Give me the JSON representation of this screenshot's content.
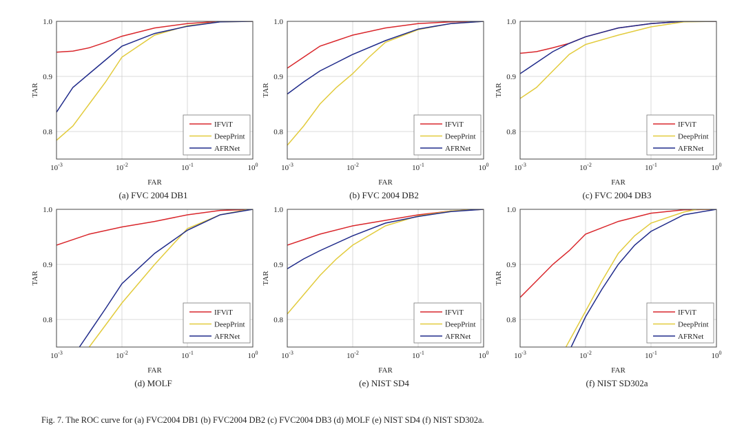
{
  "figure_caption": "Fig. 7.   The ROC curve for (a) FVC2004 DB1 (b) FVC2004 DB2 (c) FVC2004 DB3 (d) MOLF (e) NIST SD4 (f) NIST SD302a.",
  "colors": {
    "IFViT": "#d9262b",
    "DeepPrint": "#e2cb3c",
    "AFRNet": "#1f2a8a",
    "grid": "#cfcfcf",
    "axis": "#444444"
  },
  "chart_data": [
    {
      "type": "line",
      "title": "(a) FVC 2004 DB1",
      "xlabel": "FAR",
      "ylabel": "TAR",
      "xscale": "log",
      "xlim": [
        0.001,
        1
      ],
      "ylim": [
        0.75,
        1.0
      ],
      "x_tick_labels": [
        {
          "base": "10",
          "exp": "-3"
        },
        {
          "base": "10",
          "exp": "-2"
        },
        {
          "base": "10",
          "exp": "-1"
        },
        {
          "base": "10",
          "exp": "0"
        }
      ],
      "y_tick_labels": [
        "0.8",
        "0.9",
        "1.0"
      ],
      "grid": true,
      "legend": "bottom-right",
      "series": [
        {
          "name": "IFViT",
          "log10_far": [
            -3,
            -2.75,
            -2.5,
            -2.25,
            -2,
            -1.5,
            -1,
            -0.5,
            0
          ],
          "tar": [
            0.944,
            0.946,
            0.952,
            0.962,
            0.973,
            0.988,
            0.996,
            1.0,
            1.0
          ]
        },
        {
          "name": "DeepPrint",
          "log10_far": [
            -3,
            -2.75,
            -2.5,
            -2.25,
            -2,
            -1.5,
            -1,
            -0.5,
            0
          ],
          "tar": [
            0.784,
            0.81,
            0.85,
            0.89,
            0.935,
            0.975,
            0.992,
            0.999,
            1.0
          ]
        },
        {
          "name": "AFRNet",
          "log10_far": [
            -3,
            -2.75,
            -2.5,
            -2.25,
            -2,
            -1.5,
            -1,
            -0.5,
            0
          ],
          "tar": [
            0.835,
            0.88,
            0.905,
            0.93,
            0.955,
            0.978,
            0.991,
            0.999,
            1.0
          ]
        }
      ]
    },
    {
      "type": "line",
      "title": "(b) FVC 2004 DB2",
      "xlabel": "FAR",
      "ylabel": "TAR",
      "xscale": "log",
      "xlim": [
        0.001,
        1
      ],
      "ylim": [
        0.75,
        1.0
      ],
      "x_tick_labels": [
        {
          "base": "10",
          "exp": "-3"
        },
        {
          "base": "10",
          "exp": "-2"
        },
        {
          "base": "10",
          "exp": "-1"
        },
        {
          "base": "10",
          "exp": "0"
        }
      ],
      "y_tick_labels": [
        "0.8",
        "0.9",
        "1.0"
      ],
      "grid": true,
      "legend": "bottom-right",
      "series": [
        {
          "name": "IFViT",
          "log10_far": [
            -3,
            -2.75,
            -2.5,
            -2.25,
            -2,
            -1.5,
            -1,
            -0.5,
            0
          ],
          "tar": [
            0.915,
            0.935,
            0.955,
            0.965,
            0.975,
            0.988,
            0.996,
            0.999,
            1.0
          ]
        },
        {
          "name": "DeepPrint",
          "log10_far": [
            -3,
            -2.75,
            -2.5,
            -2.25,
            -2,
            -1.75,
            -1.5,
            -1,
            -0.5,
            0
          ],
          "tar": [
            0.775,
            0.81,
            0.85,
            0.88,
            0.905,
            0.935,
            0.962,
            0.985,
            0.996,
            1.0
          ]
        },
        {
          "name": "AFRNet",
          "log10_far": [
            -3,
            -2.75,
            -2.5,
            -2.25,
            -2,
            -1.5,
            -1,
            -0.5,
            0
          ],
          "tar": [
            0.868,
            0.89,
            0.91,
            0.925,
            0.94,
            0.965,
            0.986,
            0.996,
            1.0
          ]
        }
      ]
    },
    {
      "type": "line",
      "title": "(c) FVC 2004 DB3",
      "xlabel": "FAR",
      "ylabel": "TAR",
      "xscale": "log",
      "xlim": [
        0.001,
        1
      ],
      "ylim": [
        0.75,
        1.0
      ],
      "x_tick_labels": [
        {
          "base": "10",
          "exp": "-3"
        },
        {
          "base": "10",
          "exp": "-2"
        },
        {
          "base": "10",
          "exp": "-1"
        },
        {
          "base": "10",
          "exp": "0"
        }
      ],
      "y_tick_labels": [
        "0.8",
        "0.9",
        "1.0"
      ],
      "grid": true,
      "legend": "bottom-right",
      "series": [
        {
          "name": "IFViT",
          "log10_far": [
            -3,
            -2.75,
            -2.5,
            -2.25,
            -2,
            -1.5,
            -1,
            -0.5,
            0
          ],
          "tar": [
            0.942,
            0.945,
            0.952,
            0.96,
            0.972,
            0.988,
            0.996,
            1.0,
            1.0
          ]
        },
        {
          "name": "DeepPrint",
          "log10_far": [
            -3,
            -2.75,
            -2.5,
            -2.25,
            -2,
            -1.5,
            -1,
            -0.5,
            0
          ],
          "tar": [
            0.86,
            0.88,
            0.91,
            0.94,
            0.958,
            0.975,
            0.99,
            0.999,
            1.0
          ]
        },
        {
          "name": "AFRNet",
          "log10_far": [
            -3,
            -2.75,
            -2.5,
            -2.25,
            -2,
            -1.5,
            -1,
            -0.5,
            0
          ],
          "tar": [
            0.905,
            0.925,
            0.945,
            0.96,
            0.972,
            0.988,
            0.996,
            1.0,
            1.0
          ]
        }
      ]
    },
    {
      "type": "line",
      "title": "(d) MOLF",
      "xlabel": "FAR",
      "ylabel": "TAR",
      "xscale": "log",
      "xlim": [
        0.001,
        1
      ],
      "ylim": [
        0.75,
        1.0
      ],
      "x_tick_labels": [
        {
          "base": "10",
          "exp": "-3"
        },
        {
          "base": "10",
          "exp": "-2"
        },
        {
          "base": "10",
          "exp": "-1"
        },
        {
          "base": "10",
          "exp": "0"
        }
      ],
      "y_tick_labels": [
        "0.8",
        "0.9",
        "1.0"
      ],
      "grid": true,
      "legend": "bottom-right",
      "series": [
        {
          "name": "IFViT",
          "log10_far": [
            -3,
            -2.5,
            -2,
            -1.5,
            -1,
            -0.5,
            0
          ],
          "tar": [
            0.935,
            0.955,
            0.968,
            0.978,
            0.99,
            0.998,
            1.0
          ]
        },
        {
          "name": "DeepPrint",
          "log10_far": [
            -2.5,
            -2.25,
            -2,
            -1.5,
            -1,
            -0.5,
            -0.2,
            0
          ],
          "tar": [
            0.75,
            0.79,
            0.83,
            0.9,
            0.965,
            0.99,
            0.997,
            1.0
          ]
        },
        {
          "name": "AFRNet",
          "log10_far": [
            -2.65,
            -2.25,
            -2,
            -1.5,
            -1,
            -0.5,
            0
          ],
          "tar": [
            0.75,
            0.82,
            0.865,
            0.92,
            0.962,
            0.99,
            1.0
          ]
        }
      ]
    },
    {
      "type": "line",
      "title": "(e) NIST SD4",
      "xlabel": "FAR",
      "ylabel": "TAR",
      "xscale": "log",
      "xlim": [
        0.001,
        1
      ],
      "ylim": [
        0.75,
        1.0
      ],
      "x_tick_labels": [
        {
          "base": "10",
          "exp": "-3"
        },
        {
          "base": "10",
          "exp": "-2"
        },
        {
          "base": "10",
          "exp": "-1"
        },
        {
          "base": "10",
          "exp": "0"
        }
      ],
      "y_tick_labels": [
        "0.8",
        "0.9",
        "1.0"
      ],
      "grid": true,
      "legend": "bottom-right",
      "series": [
        {
          "name": "IFViT",
          "log10_far": [
            -3,
            -2.5,
            -2,
            -1.5,
            -1,
            -0.5,
            0
          ],
          "tar": [
            0.935,
            0.955,
            0.97,
            0.98,
            0.99,
            0.997,
            1.0
          ]
        },
        {
          "name": "DeepPrint",
          "log10_far": [
            -3,
            -2.75,
            -2.5,
            -2.25,
            -2,
            -1.5,
            -1,
            -0.5,
            0
          ],
          "tar": [
            0.81,
            0.845,
            0.88,
            0.91,
            0.935,
            0.97,
            0.988,
            0.997,
            1.0
          ]
        },
        {
          "name": "AFRNet",
          "log10_far": [
            -3,
            -2.75,
            -2.5,
            -2,
            -1.5,
            -1,
            -0.5,
            0
          ],
          "tar": [
            0.892,
            0.91,
            0.925,
            0.952,
            0.975,
            0.987,
            0.996,
            1.0
          ]
        }
      ]
    },
    {
      "type": "line",
      "title": "(f) NIST SD302a",
      "xlabel": "FAR",
      "ylabel": "TAR",
      "xscale": "log",
      "xlim": [
        0.001,
        1
      ],
      "ylim": [
        0.75,
        1.0
      ],
      "x_tick_labels": [
        {
          "base": "10",
          "exp": "-3"
        },
        {
          "base": "10",
          "exp": "-2"
        },
        {
          "base": "10",
          "exp": "-1"
        },
        {
          "base": "10",
          "exp": "0"
        }
      ],
      "y_tick_labels": [
        "0.8",
        "0.9",
        "1.0"
      ],
      "grid": true,
      "legend": "bottom-right",
      "series": [
        {
          "name": "IFViT",
          "log10_far": [
            -3,
            -2.75,
            -2.5,
            -2.25,
            -2,
            -1.5,
            -1,
            -0.5,
            0
          ],
          "tar": [
            0.84,
            0.87,
            0.9,
            0.925,
            0.955,
            0.978,
            0.993,
            0.999,
            1.0
          ]
        },
        {
          "name": "DeepPrint",
          "log10_far": [
            -2.3,
            -2,
            -1.75,
            -1.5,
            -1.25,
            -1,
            -0.5,
            -0.3,
            0
          ],
          "tar": [
            0.75,
            0.815,
            0.87,
            0.92,
            0.952,
            0.975,
            0.995,
            1.0,
            1.0
          ]
        },
        {
          "name": "AFRNet",
          "log10_far": [
            -2.22,
            -2,
            -1.75,
            -1.5,
            -1.25,
            -1,
            -0.5,
            0
          ],
          "tar": [
            0.75,
            0.805,
            0.855,
            0.9,
            0.935,
            0.96,
            0.99,
            1.0
          ]
        }
      ]
    }
  ]
}
